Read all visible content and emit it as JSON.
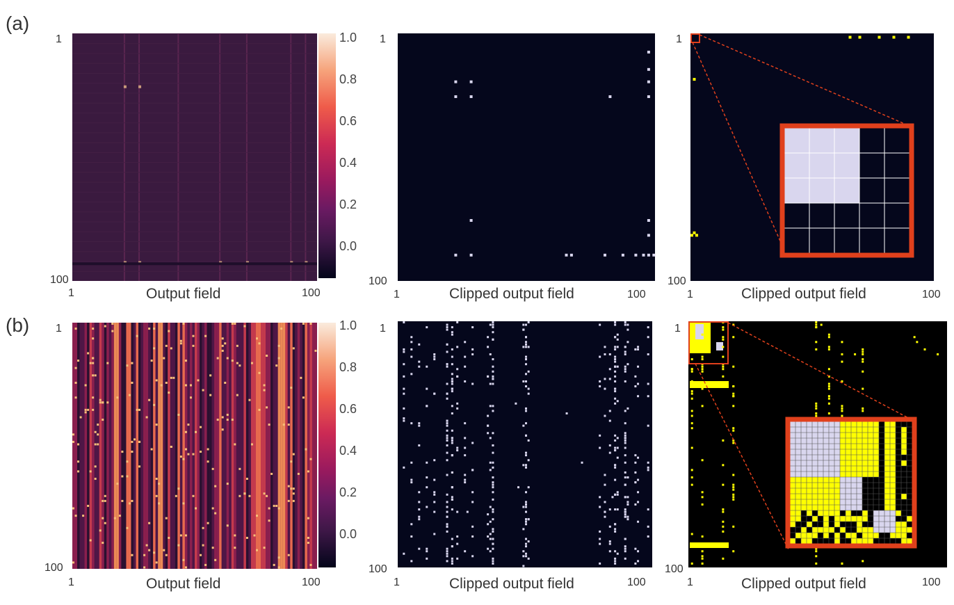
{
  "figure": {
    "row_labels": {
      "a": "(a)",
      "b": "(b)"
    },
    "colors": {
      "heat_bg_a": "#3a1a3f",
      "heat_bg_b": "#6e1b48",
      "binary_bg": "#05071c",
      "binary_dot": "#d9d6ee",
      "yellow": "#ffff00",
      "inset_frame": "#e0401c",
      "zoom_line": "#e0401c"
    }
  },
  "chart_data": [
    {
      "id": "a-left",
      "type": "heatmap",
      "title": "",
      "xlabel": "Output field",
      "ylabel": "",
      "x_ticks": [
        "1",
        "100"
      ],
      "y_ticks": [
        "1",
        "100"
      ],
      "colorbar": {
        "range": [
          -0.1,
          1.0
        ],
        "ticks": [
          "1.0",
          "0.8",
          "0.6",
          "0.4",
          "0.2",
          "0.0"
        ]
      },
      "description_values": "mostly near 0.0 with faint stripes"
    },
    {
      "id": "a-mid",
      "type": "heatmap",
      "xlabel": "Clipped output field",
      "x_ticks": [
        "1",
        "100"
      ],
      "y_ticks": [
        "1",
        "100"
      ],
      "points": [
        [
          23,
          20
        ],
        [
          29,
          20
        ],
        [
          23,
          26
        ],
        [
          29,
          26
        ],
        [
          83,
          26
        ],
        [
          98,
          26
        ],
        [
          98,
          15
        ],
        [
          98,
          20
        ],
        [
          98,
          8
        ],
        [
          29,
          76
        ],
        [
          98,
          76
        ],
        [
          98,
          82
        ],
        [
          23,
          90
        ],
        [
          29,
          90
        ],
        [
          66,
          90
        ],
        [
          68,
          90
        ],
        [
          81,
          90
        ],
        [
          88,
          90
        ],
        [
          93,
          90
        ],
        [
          96,
          90
        ],
        [
          98,
          90
        ],
        [
          100,
          90
        ]
      ]
    },
    {
      "id": "a-right",
      "type": "heatmap",
      "xlabel": "Clipped output field",
      "x_ticks": [
        "1",
        "100"
      ],
      "y_ticks": [
        "1",
        "100"
      ],
      "inset_grid": {
        "rows": 5,
        "cols": 5,
        "filled": [
          [
            0,
            0
          ],
          [
            0,
            1
          ],
          [
            0,
            2
          ],
          [
            1,
            0
          ],
          [
            1,
            1
          ],
          [
            1,
            2
          ],
          [
            2,
            0
          ],
          [
            2,
            1
          ],
          [
            2,
            2
          ]
        ]
      }
    },
    {
      "id": "b-left",
      "type": "heatmap",
      "xlabel": "Output field",
      "x_ticks": [
        "1",
        "100"
      ],
      "y_ticks": [
        "1",
        "100"
      ],
      "colorbar": {
        "range": [
          -0.1,
          1.0
        ],
        "ticks": [
          "1.0",
          "0.8",
          "0.6",
          "0.4",
          "0.2",
          "0.0"
        ]
      }
    },
    {
      "id": "b-mid",
      "type": "heatmap",
      "xlabel": "Clipped output field",
      "x_ticks": [
        "1",
        "100"
      ],
      "y_ticks": [
        "1",
        "100"
      ]
    },
    {
      "id": "b-right",
      "type": "heatmap",
      "xlabel": "Clipped output field",
      "x_ticks": [
        "1",
        "100"
      ],
      "y_ticks": [
        "1",
        "100"
      ]
    }
  ]
}
